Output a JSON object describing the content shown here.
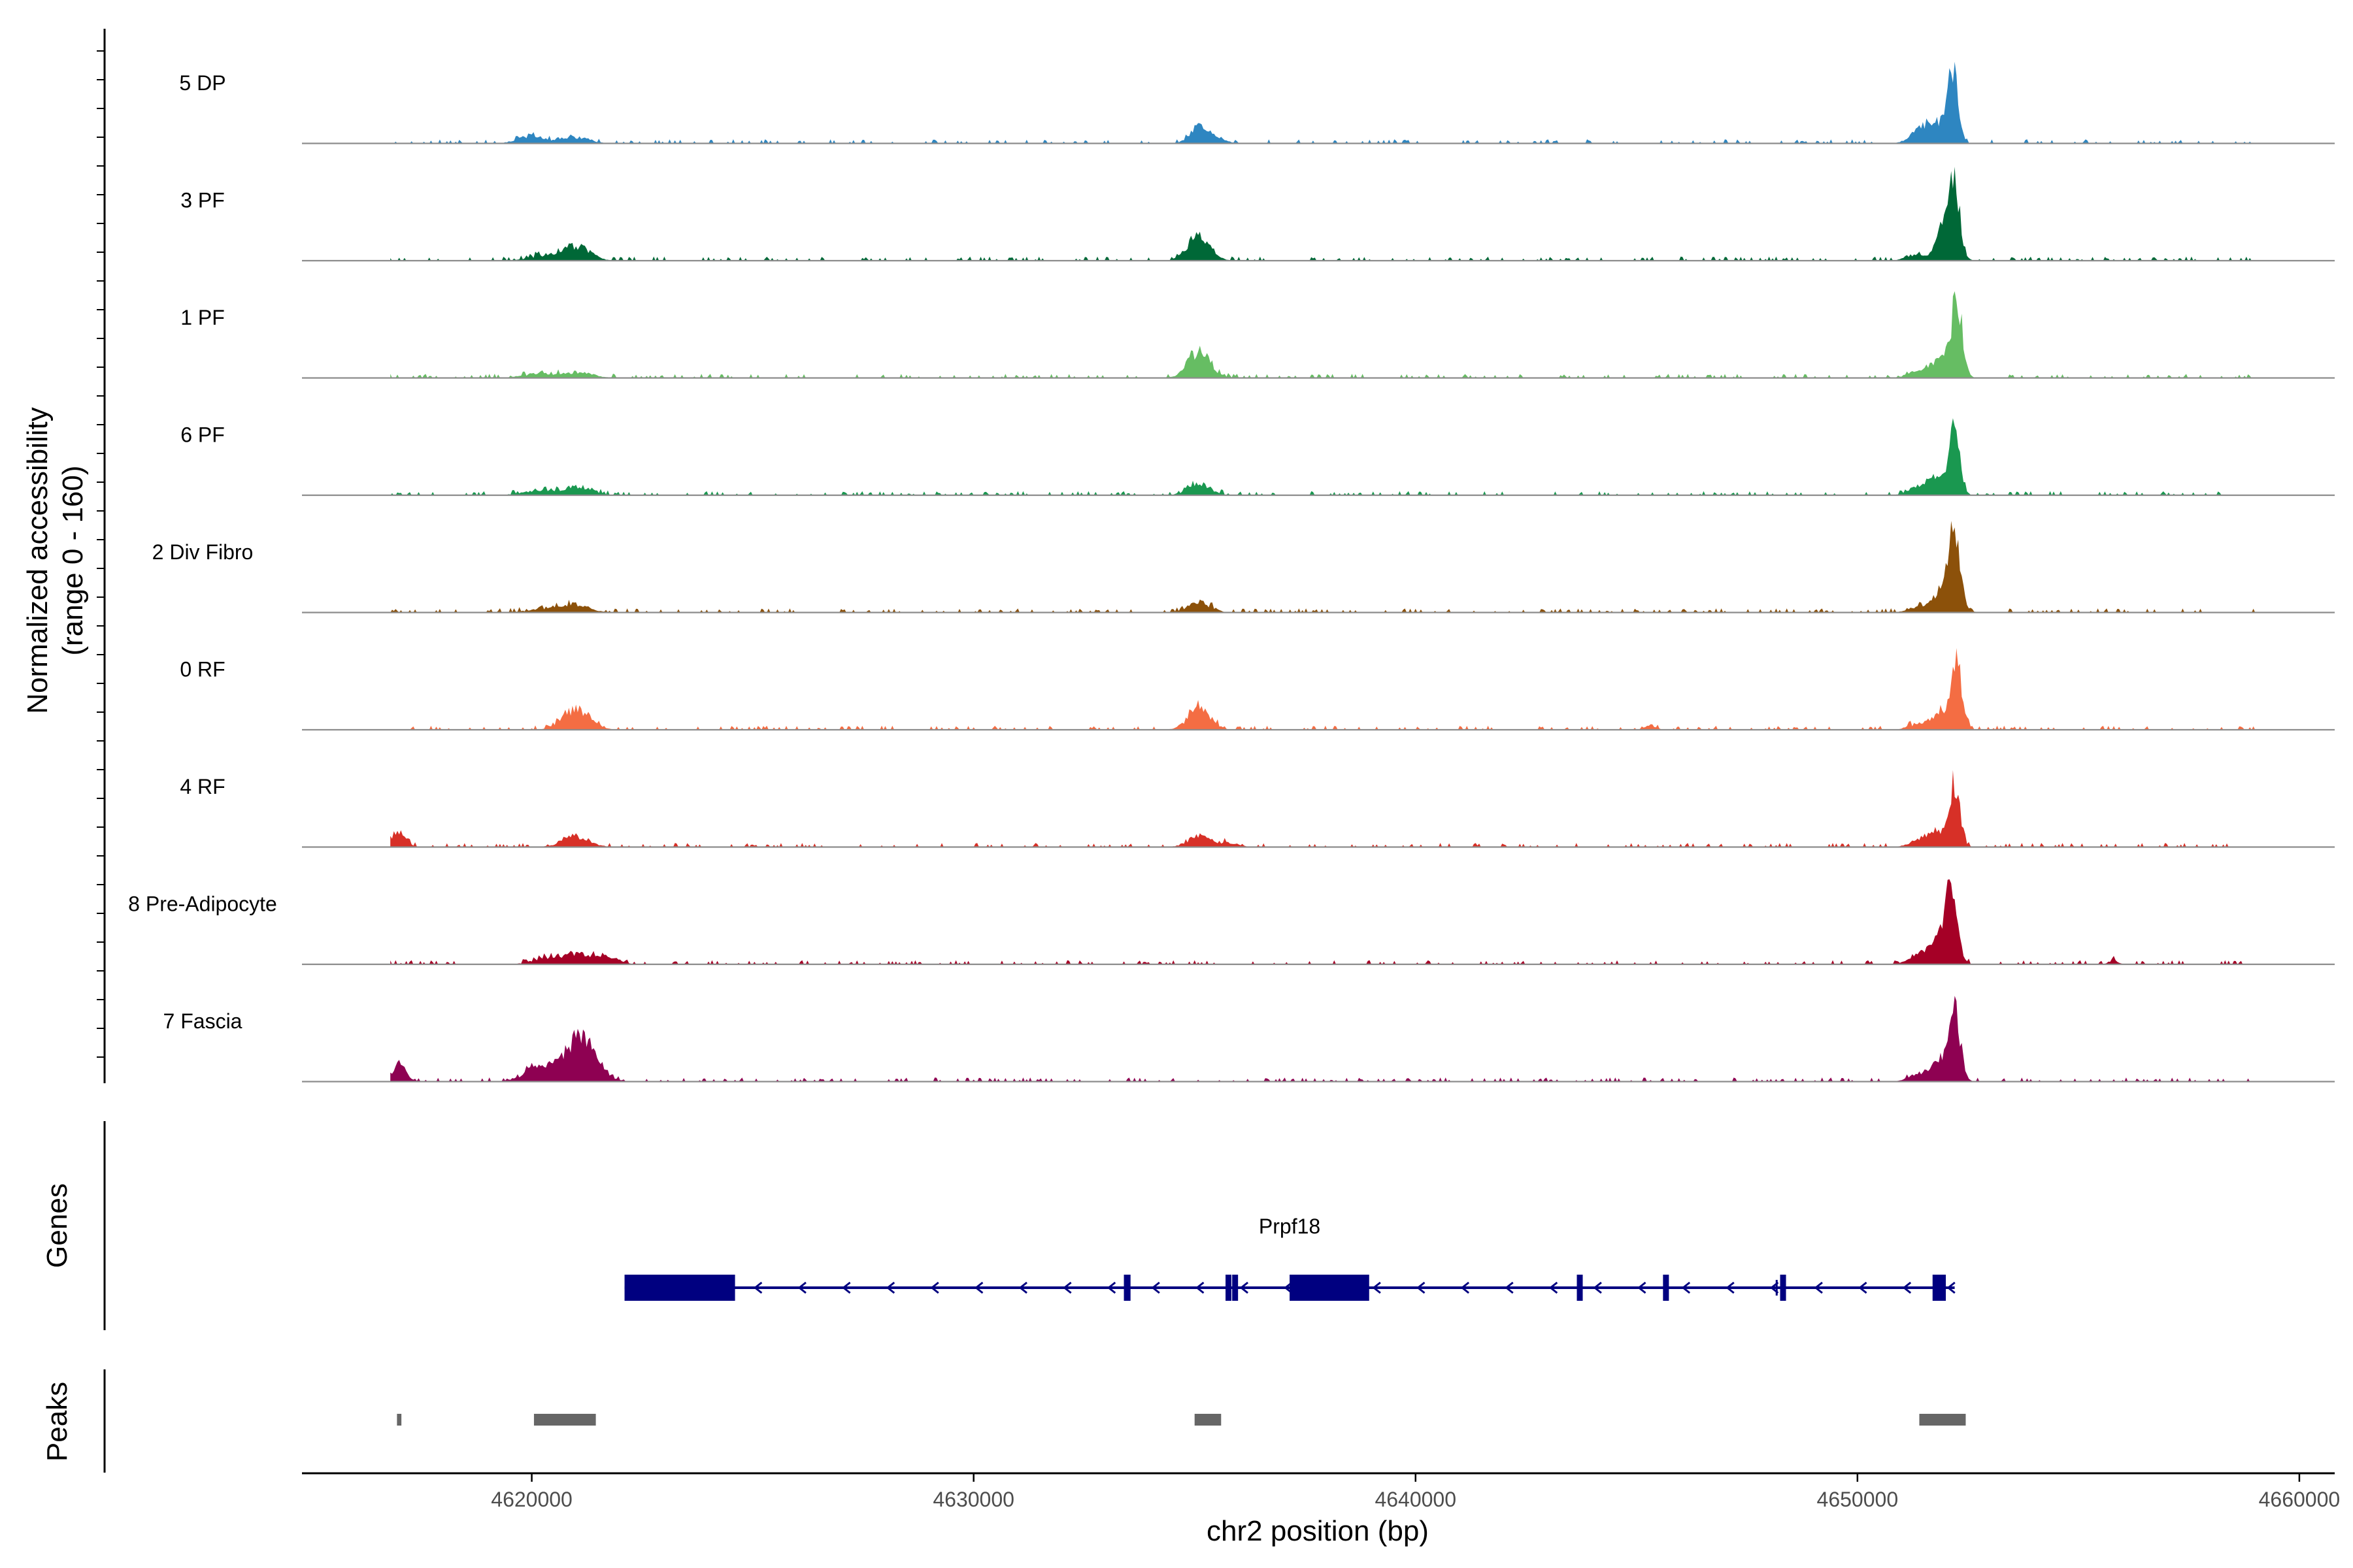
{
  "chart_data": {
    "type": "area",
    "title": "",
    "xlabel": "chr2 position (bp)",
    "ylabel_line1": "Normalized accessibility",
    "ylabel_line2": "(range 0 - 160)",
    "xlim": [
      4614800,
      4660800
    ],
    "ylim": [
      0,
      160
    ],
    "x_ticks": [
      4620000,
      4630000,
      4640000,
      4650000,
      4660000
    ],
    "x_tick_labels": [
      "4620000",
      "4630000",
      "4640000",
      "4650000",
      "4660000"
    ],
    "track_panel_label": "Genes",
    "peaks_panel_label": "Peaks",
    "series": [
      {
        "name": "5 DP",
        "color": "#2e86c1",
        "peaks": [
          [
            4620000,
            14,
            300
          ],
          [
            4621000,
            12,
            300
          ],
          [
            4635100,
            30,
            200
          ],
          [
            4635500,
            10,
            200
          ],
          [
            4651700,
            40,
            250
          ],
          [
            4652150,
            140,
            120
          ],
          [
            4651300,
            10,
            200
          ]
        ]
      },
      {
        "name": "3 PF",
        "color": "#006837",
        "peaks": [
          [
            4620200,
            8,
            300
          ],
          [
            4621000,
            28,
            300
          ],
          [
            4635100,
            45,
            250
          ],
          [
            4652000,
            65,
            200
          ],
          [
            4652200,
            110,
            120
          ],
          [
            4651300,
            12,
            200
          ]
        ]
      },
      {
        "name": "1 PF",
        "color": "#66bd63",
        "peaks": [
          [
            4620200,
            8,
            400
          ],
          [
            4621100,
            10,
            300
          ],
          [
            4635100,
            50,
            250
          ],
          [
            4651900,
            40,
            250
          ],
          [
            4652250,
            130,
            120
          ],
          [
            4651300,
            10,
            200
          ]
        ]
      },
      {
        "name": "6 PF",
        "color": "#1a9850",
        "peaks": [
          [
            4620200,
            8,
            400
          ],
          [
            4621100,
            14,
            300
          ],
          [
            4635100,
            22,
            250
          ],
          [
            4651800,
            30,
            250
          ],
          [
            4652200,
            112,
            120
          ],
          [
            4651300,
            10,
            200
          ]
        ]
      },
      {
        "name": "2 Div Fibro",
        "color": "#8c510a",
        "peaks": [
          [
            4620300,
            6,
            400
          ],
          [
            4621000,
            14,
            300
          ],
          [
            4635100,
            20,
            250
          ],
          [
            4652000,
            50,
            250
          ],
          [
            4652200,
            122,
            120
          ],
          [
            4651300,
            8,
            200
          ]
        ]
      },
      {
        "name": "0 RF",
        "color": "#f46d43",
        "peaks": [
          [
            4621000,
            40,
            300
          ],
          [
            4635100,
            40,
            250
          ],
          [
            4645300,
            10,
            120
          ],
          [
            4651900,
            30,
            250
          ],
          [
            4652250,
            120,
            120
          ],
          [
            4651300,
            8,
            200
          ]
        ]
      },
      {
        "name": "4 RF",
        "color": "#d73027",
        "peaks": [
          [
            4617000,
            28,
            150
          ],
          [
            4621000,
            20,
            300
          ],
          [
            4635100,
            20,
            250
          ],
          [
            4635800,
            8,
            200
          ],
          [
            4651800,
            30,
            250
          ],
          [
            4652200,
            105,
            120
          ],
          [
            4651300,
            8,
            200
          ]
        ]
      },
      {
        "name": "8 Pre-Adipocyte",
        "color": "#a50026",
        "peaks": [
          [
            4620300,
            10,
            300
          ],
          [
            4621100,
            20,
            400
          ],
          [
            4621800,
            10,
            200
          ],
          [
            4652100,
            112,
            150
          ],
          [
            4651800,
            40,
            250
          ],
          [
            4651300,
            10,
            200
          ],
          [
            4655800,
            8,
            100
          ]
        ]
      },
      {
        "name": "7 Fascia",
        "color": "#8e0152",
        "peaks": [
          [
            4617000,
            35,
            150
          ],
          [
            4620200,
            28,
            350
          ],
          [
            4621100,
            80,
            350
          ],
          [
            4651900,
            40,
            250
          ],
          [
            4652200,
            125,
            120
          ],
          [
            4651300,
            10,
            200
          ]
        ]
      }
    ],
    "genes": [
      {
        "name": "Prpf18",
        "start": 4622100,
        "end": 4652200,
        "strand": "-",
        "exons": [
          [
            4622100,
            4624600,
            "wide"
          ],
          [
            4633400,
            4633550,
            "narrow"
          ],
          [
            4635700,
            4635800,
            "narrow"
          ],
          [
            4635850,
            4635950,
            "narrow"
          ],
          [
            4637150,
            4638950,
            "wide"
          ],
          [
            4643650,
            4643750,
            "narrow"
          ],
          [
            4645600,
            4645700,
            "narrow"
          ],
          [
            4648150,
            4648200,
            "thin"
          ],
          [
            4648250,
            4648350,
            "narrow"
          ],
          [
            4651700,
            4652000,
            "narrow"
          ]
        ]
      }
    ],
    "peak_regions": [
      [
        4616950,
        4617050
      ],
      [
        4620050,
        4621450
      ],
      [
        4635000,
        4635600
      ],
      [
        4651400,
        4652450
      ]
    ]
  },
  "colors": {
    "gene": "#000080",
    "peak": "#666666",
    "baseline": "#8c8c8c"
  }
}
